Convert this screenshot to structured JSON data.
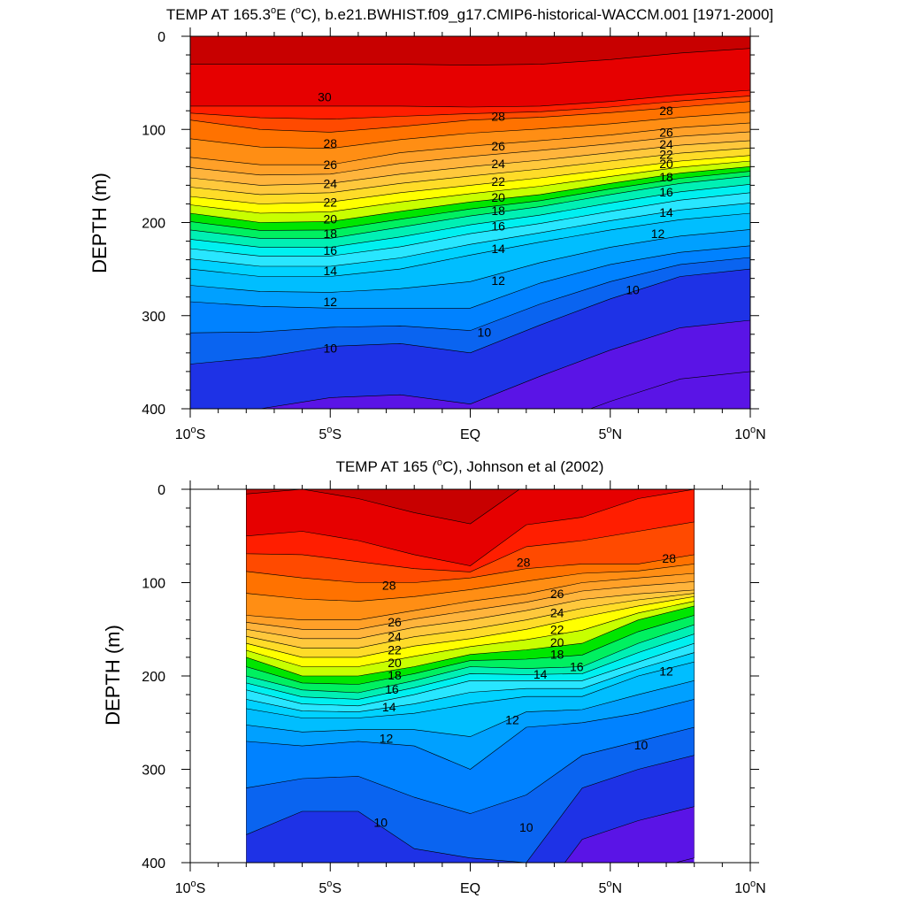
{
  "chart_data": [
    {
      "type": "contour",
      "title_main": "TEMP AT 165.3",
      "title_deg": "o",
      "title_rest": "E (",
      "title_unit_deg": "o",
      "title_tail": "C), b.e21.BWHIST.f09_g17.CMIP6-historical-WACCM.001 [1971-2000]",
      "ylabel": "DEPTH (m)",
      "ylim": [
        400,
        0
      ],
      "yticks": [
        "0",
        "100",
        "200",
        "300",
        "400"
      ],
      "xticks": [
        {
          "value": -10,
          "label": "10",
          "deg": "o",
          "suffix": "S"
        },
        {
          "value": -5,
          "label": "5",
          "deg": "o",
          "suffix": "S"
        },
        {
          "value": 0,
          "label": "EQ",
          "deg": "",
          "suffix": ""
        },
        {
          "value": 5,
          "label": "5",
          "deg": "o",
          "suffix": "N"
        },
        {
          "value": 10,
          "label": "10",
          "deg": "o",
          "suffix": "N"
        }
      ],
      "xlim": [
        -10,
        10
      ],
      "data_xrange": [
        -10,
        10
      ],
      "contour_levels": [
        31,
        30,
        29,
        28,
        27,
        26,
        25,
        24,
        23,
        22,
        21,
        20,
        19,
        18,
        17,
        16,
        15,
        14,
        13,
        12,
        11,
        10,
        9,
        8
      ],
      "isotherms": {
        "x": [
          -10,
          -7.5,
          -5,
          -2.5,
          0,
          2.5,
          5,
          7.5,
          10
        ],
        "depths": {
          "30": [
            75,
            75,
            75,
            75,
            76,
            75,
            70,
            63,
            58
          ],
          "28": [
            90,
            100,
            103,
            97,
            90,
            87,
            82,
            76,
            70
          ],
          "26": [
            130,
            138,
            138,
            125,
            118,
            112,
            106,
            98,
            93
          ],
          "24": [
            152,
            160,
            158,
            148,
            140,
            133,
            125,
            117,
            112
          ],
          "22": [
            172,
            180,
            178,
            168,
            160,
            152,
            143,
            134,
            128
          ],
          "20": [
            190,
            200,
            199,
            188,
            178,
            170,
            158,
            147,
            140
          ],
          "18": [
            208,
            217,
            217,
            205,
            193,
            183,
            170,
            158,
            150
          ],
          "16": [
            228,
            236,
            236,
            226,
            212,
            201,
            188,
            176,
            168
          ],
          "14": [
            250,
            258,
            258,
            250,
            235,
            221,
            208,
            197,
            190
          ],
          "12": [
            285,
            290,
            292,
            292,
            292,
            265,
            245,
            232,
            225
          ],
          "10": [
            352,
            345,
            333,
            330,
            340,
            310,
            282,
            258,
            250
          ]
        }
      },
      "labels": [
        {
          "text": "30",
          "x": -5.2,
          "depth": 65
        },
        {
          "text": "28",
          "x": -5,
          "depth": 115
        },
        {
          "text": "28",
          "x": 1,
          "depth": 86
        },
        {
          "text": "28",
          "x": 7,
          "depth": 80
        },
        {
          "text": "26",
          "x": -5,
          "depth": 138
        },
        {
          "text": "26",
          "x": 1,
          "depth": 118
        },
        {
          "text": "26",
          "x": 7,
          "depth": 103
        },
        {
          "text": "24",
          "x": -5,
          "depth": 158
        },
        {
          "text": "24",
          "x": 1,
          "depth": 137
        },
        {
          "text": "24",
          "x": 7,
          "depth": 116
        },
        {
          "text": "22",
          "x": -5,
          "depth": 178
        },
        {
          "text": "22",
          "x": 1,
          "depth": 156
        },
        {
          "text": "22",
          "x": 7,
          "depth": 127
        },
        {
          "text": "20",
          "x": -5,
          "depth": 196
        },
        {
          "text": "20",
          "x": 1,
          "depth": 173
        },
        {
          "text": "20",
          "x": 7,
          "depth": 137
        },
        {
          "text": "18",
          "x": -5,
          "depth": 212
        },
        {
          "text": "18",
          "x": 1,
          "depth": 187
        },
        {
          "text": "18",
          "x": 7,
          "depth": 151
        },
        {
          "text": "16",
          "x": -5,
          "depth": 230
        },
        {
          "text": "16",
          "x": 1,
          "depth": 204
        },
        {
          "text": "16",
          "x": 7,
          "depth": 167
        },
        {
          "text": "14",
          "x": -5,
          "depth": 252
        },
        {
          "text": "14",
          "x": 1,
          "depth": 228
        },
        {
          "text": "14",
          "x": 7,
          "depth": 189
        },
        {
          "text": "12",
          "x": -5,
          "depth": 285
        },
        {
          "text": "12",
          "x": 1,
          "depth": 262
        },
        {
          "text": "12",
          "x": 6.7,
          "depth": 212
        },
        {
          "text": "10",
          "x": -5,
          "depth": 335
        },
        {
          "text": "10",
          "x": 0.5,
          "depth": 318
        },
        {
          "text": "10",
          "x": 5.8,
          "depth": 272
        }
      ]
    },
    {
      "type": "contour",
      "title_main": "TEMP AT 165 (",
      "title_deg": "o",
      "title_rest": "C), Johnson et al (2002)",
      "ylabel": "DEPTH (m)",
      "ylim": [
        400,
        0
      ],
      "yticks": [
        "0",
        "100",
        "200",
        "300",
        "400"
      ],
      "xticks": [
        {
          "value": -10,
          "label": "10",
          "deg": "o",
          "suffix": "S"
        },
        {
          "value": -5,
          "label": "5",
          "deg": "o",
          "suffix": "S"
        },
        {
          "value": 0,
          "label": "EQ",
          "deg": "",
          "suffix": ""
        },
        {
          "value": 5,
          "label": "5",
          "deg": "o",
          "suffix": "N"
        },
        {
          "value": 10,
          "label": "10",
          "deg": "o",
          "suffix": "N"
        }
      ],
      "xlim": [
        -10,
        10
      ],
      "data_xrange": [
        -8,
        8
      ],
      "contour_levels": [
        31,
        30,
        29,
        28,
        27,
        26,
        25,
        24,
        23,
        22,
        21,
        20,
        19,
        18,
        17,
        16,
        15,
        14,
        13,
        12,
        11,
        10,
        9,
        8
      ],
      "isotherms": {
        "x": [
          -8,
          -6,
          -4,
          -2,
          0,
          2,
          4,
          6,
          8
        ],
        "depths": {
          "30": [
            50,
            45,
            55,
            70,
            82,
            38,
            30,
            10,
            0
          ],
          "28": [
            88,
            95,
            100,
            100,
            95,
            85,
            80,
            80,
            70
          ],
          "26": [
            135,
            140,
            140,
            130,
            120,
            112,
            100,
            95,
            90
          ],
          "24": [
            150,
            160,
            160,
            148,
            140,
            130,
            118,
            112,
            108
          ],
          "22": [
            165,
            180,
            180,
            168,
            160,
            150,
            137,
            125,
            115
          ],
          "20": [
            180,
            200,
            200,
            190,
            177,
            172,
            165,
            140,
            125
          ],
          "18": [
            200,
            215,
            218,
            205,
            190,
            192,
            190,
            165,
            145
          ],
          "16": [
            215,
            230,
            232,
            220,
            205,
            205,
            205,
            185,
            165
          ],
          "14": [
            235,
            245,
            245,
            240,
            230,
            222,
            222,
            200,
            185
          ],
          "12": [
            270,
            275,
            270,
            275,
            300,
            255,
            250,
            240,
            225
          ],
          "10": [
            370,
            345,
            345,
            385,
            395,
            400,
            320,
            300,
            285
          ]
        }
      },
      "labels": [
        {
          "text": "28",
          "x": -2.9,
          "depth": 103
        },
        {
          "text": "28",
          "x": 1.9,
          "depth": 78
        },
        {
          "text": "28",
          "x": 7.1,
          "depth": 74
        },
        {
          "text": "26",
          "x": -2.7,
          "depth": 142
        },
        {
          "text": "26",
          "x": 3.1,
          "depth": 112
        },
        {
          "text": "24",
          "x": -2.7,
          "depth": 158
        },
        {
          "text": "24",
          "x": 3.1,
          "depth": 132
        },
        {
          "text": "22",
          "x": -2.7,
          "depth": 172
        },
        {
          "text": "22",
          "x": 3.1,
          "depth": 150
        },
        {
          "text": "20",
          "x": -2.7,
          "depth": 186
        },
        {
          "text": "20",
          "x": 3.1,
          "depth": 164
        },
        {
          "text": "18",
          "x": -2.7,
          "depth": 199
        },
        {
          "text": "18",
          "x": 3.1,
          "depth": 177
        },
        {
          "text": "16",
          "x": -2.8,
          "depth": 214
        },
        {
          "text": "16",
          "x": 3.8,
          "depth": 190
        },
        {
          "text": "14",
          "x": -2.9,
          "depth": 233
        },
        {
          "text": "14",
          "x": 2.5,
          "depth": 198
        },
        {
          "text": "12",
          "x": -3,
          "depth": 267
        },
        {
          "text": "12",
          "x": 1.5,
          "depth": 247
        },
        {
          "text": "12",
          "x": 7,
          "depth": 195
        },
        {
          "text": "10",
          "x": -3.2,
          "depth": 357
        },
        {
          "text": "10",
          "x": 2,
          "depth": 362
        },
        {
          "text": "10",
          "x": 6.1,
          "depth": 274
        }
      ]
    }
  ],
  "colors": {
    "levels": [
      {
        "above": 30,
        "color": "#c80000"
      },
      {
        "above": 29,
        "color": "#e60000"
      },
      {
        "above": 28,
        "color": "#ff1e00"
      },
      {
        "above": 27,
        "color": "#ff4a00"
      },
      {
        "above": 26,
        "color": "#ff7200"
      },
      {
        "above": 25,
        "color": "#ff8e14"
      },
      {
        "above": 24,
        "color": "#ffa028"
      },
      {
        "above": 23,
        "color": "#ffb43c"
      },
      {
        "above": 22,
        "color": "#ffc83c"
      },
      {
        "above": 21,
        "color": "#ffdc28"
      },
      {
        "above": 20,
        "color": "#ffff00"
      },
      {
        "above": 19,
        "color": "#c8ff00"
      },
      {
        "above": 18,
        "color": "#00e600"
      },
      {
        "above": 17,
        "color": "#00f060"
      },
      {
        "above": 16,
        "color": "#00f0b4"
      },
      {
        "above": 15,
        "color": "#00f0f0"
      },
      {
        "above": 14,
        "color": "#28e6ff"
      },
      {
        "above": 13,
        "color": "#00d2ff"
      },
      {
        "above": 12,
        "color": "#00beff"
      },
      {
        "above": 11,
        "color": "#00a0ff"
      },
      {
        "above": 10,
        "color": "#0082ff"
      },
      {
        "above": 9,
        "color": "#0a64f0"
      },
      {
        "above": 8,
        "color": "#1e32e6"
      },
      {
        "above": 0,
        "color": "#5a14e6"
      }
    ]
  }
}
